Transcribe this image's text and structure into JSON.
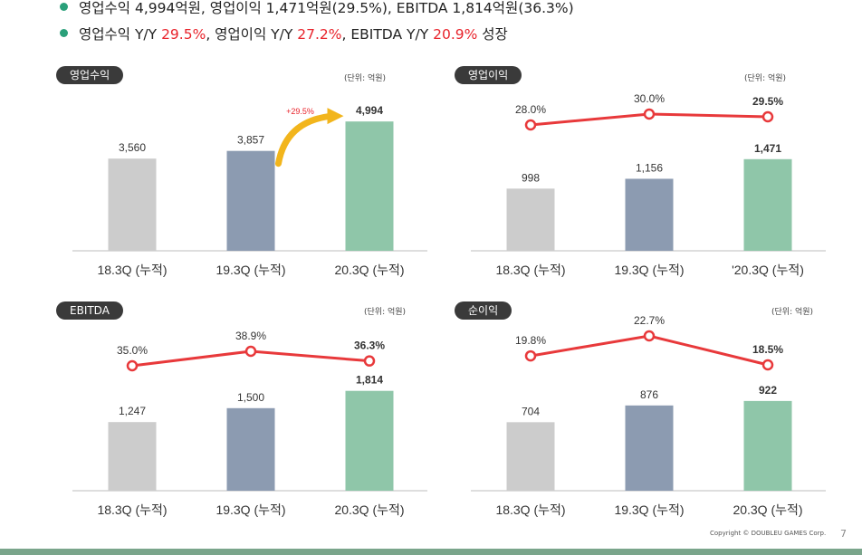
{
  "bullets": {
    "line1": "영업수익 4,994억원, 영업이익 1,471억원(29.5%), EBITDA 1,814억원(36.3%)",
    "line2": [
      {
        "text": "영업수익 Y/Y ",
        "red": false
      },
      {
        "text": "29.5%",
        "red": true
      },
      {
        "text": ", 영업이익 Y/Y ",
        "red": false
      },
      {
        "text": "27.2%",
        "red": true
      },
      {
        "text": ", EBITDA Y/Y ",
        "red": false
      },
      {
        "text": "20.9%",
        "red": true
      },
      {
        "text": " 성장",
        "red": false
      }
    ]
  },
  "colors": {
    "bars": [
      "#cccccc",
      "#8c9bb1",
      "#8fc6a9"
    ],
    "line": "#e8393b",
    "badge": "#3a3a3a",
    "accent_green": "#2aa07a",
    "arrow": "#f2b51c"
  },
  "chart_data": [
    {
      "id": "revenue",
      "type": "bar",
      "title": "영업수익",
      "unit": "(단위: 억원)",
      "categories": [
        "18.3Q (누적)",
        "19.3Q (누적)",
        "20.3Q (누적)"
      ],
      "values": [
        3560,
        3857,
        4994
      ],
      "labels": [
        "3,560",
        "3,857",
        "4,994"
      ],
      "growth_annotation": "+29.5%"
    },
    {
      "id": "operating-profit",
      "type": "bar",
      "title": "영업이익",
      "unit": "(단위: 억원)",
      "categories": [
        "18.3Q (누적)",
        "19.3Q (누적)",
        "'20.3Q (누적)"
      ],
      "values": [
        998,
        1156,
        1471
      ],
      "labels": [
        "998",
        "1,156",
        "1,471"
      ],
      "margin_values": [
        28.0,
        30.0,
        29.5
      ],
      "margin_labels": [
        "28.0%",
        "30.0%",
        "29.5%"
      ]
    },
    {
      "id": "ebitda",
      "type": "bar",
      "title": "EBITDA",
      "unit": "(단위: 억원)",
      "categories": [
        "18.3Q (누적)",
        "19.3Q (누적)",
        "20.3Q (누적)"
      ],
      "values": [
        1247,
        1500,
        1814
      ],
      "labels": [
        "1,247",
        "1,500",
        "1,814"
      ],
      "margin_values": [
        35.0,
        38.9,
        36.3
      ],
      "margin_labels": [
        "35.0%",
        "38.9%",
        "36.3%"
      ]
    },
    {
      "id": "net-income",
      "type": "bar",
      "title": "순이익",
      "unit": "(단위: 억원)",
      "categories": [
        "18.3Q (누적)",
        "19.3Q (누적)",
        "20.3Q (누적)"
      ],
      "values": [
        704,
        876,
        922
      ],
      "labels": [
        "704",
        "876",
        "922"
      ],
      "margin_values": [
        19.8,
        22.7,
        18.5
      ],
      "margin_labels": [
        "19.8%",
        "22.7%",
        "18.5%"
      ]
    }
  ],
  "footer": {
    "copyright": "Copyright © DOUBLEU GAMES Corp.",
    "page": "7"
  }
}
